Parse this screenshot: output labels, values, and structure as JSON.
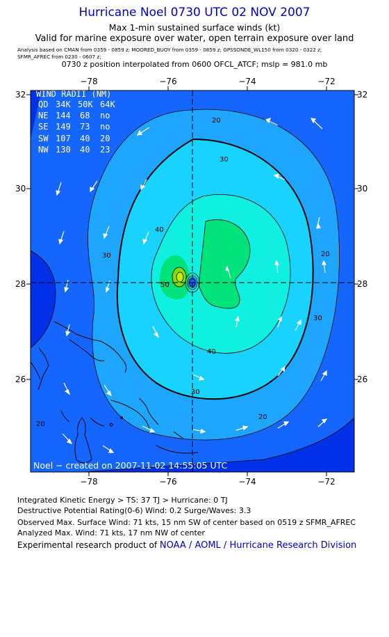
{
  "header": {
    "title": "Hurricane Noel 0730 UTC 02 NOV 2007",
    "subtitle1": "Max 1-min sustained surface winds (kt)",
    "subtitle2": "Valid for marine exposure over water, open terrain exposure over land",
    "analysis_line1": "Analysis based on  CMAN from 0359 - 0859 z;   MOORED_BUOY from 0359 - 0859 z;   GPSSONDE_WL150 from 0320 - 0322 z;",
    "analysis_line2": "SFMR_AFREC from 0230 - 0607 z;",
    "position_line": "0730 z position interpolated from 0600 OFCL_ATCF; mslp = 981.0 mb"
  },
  "map": {
    "lon_ticks": [
      "−78",
      "−76",
      "−74",
      "−72"
    ],
    "lat_ticks": [
      "32",
      "30",
      "28",
      "26"
    ],
    "lon_range": [
      -79.2,
      -71.6
    ],
    "lat_range": [
      24.0,
      32.1
    ],
    "center": {
      "lon": -75.5,
      "lat": 28.1
    },
    "contour_labels": [
      "20",
      "30",
      "40",
      "50"
    ],
    "credit": "Noel − created on 2007-11-02 14:55:05 UTC",
    "wind_radii": {
      "title": "WIND RADII (NM)",
      "header": [
        "QD",
        "34K",
        "50K",
        "64K"
      ],
      "rows": [
        [
          "NE",
          "144",
          "68",
          "no"
        ],
        [
          "SE",
          "149",
          "73",
          "no"
        ],
        [
          "SW",
          "107",
          "40",
          "20"
        ],
        [
          "NW",
          "130",
          "40",
          "23"
        ]
      ]
    },
    "colors": {
      "outer": "#0030e8",
      "band1": "#1466ff",
      "band2": "#1ea6ff",
      "band3": "#18d2ff",
      "band4": "#10f0e0",
      "band5": "#00e27a",
      "core": "#c6ee00"
    }
  },
  "footer": {
    "ike": "Integrated Kinetic Energy > TS: 37 TJ   > Hurricane: 0 TJ",
    "dpr": "Destructive Potential Rating(0-6)   Wind: 0.2 Surge/Waves: 3.3",
    "observed": "Observed Max. Surface Wind: 71 kts, 15 nm SW of center based on 0519 z SFMR_AFREC",
    "analyzed": "Analyzed Max. Wind: 71 kts, 17 nm NW of center",
    "product_prefix": "Experimental research product of ",
    "product_org": "NOAA / AOML / Hurricane Research Division"
  }
}
